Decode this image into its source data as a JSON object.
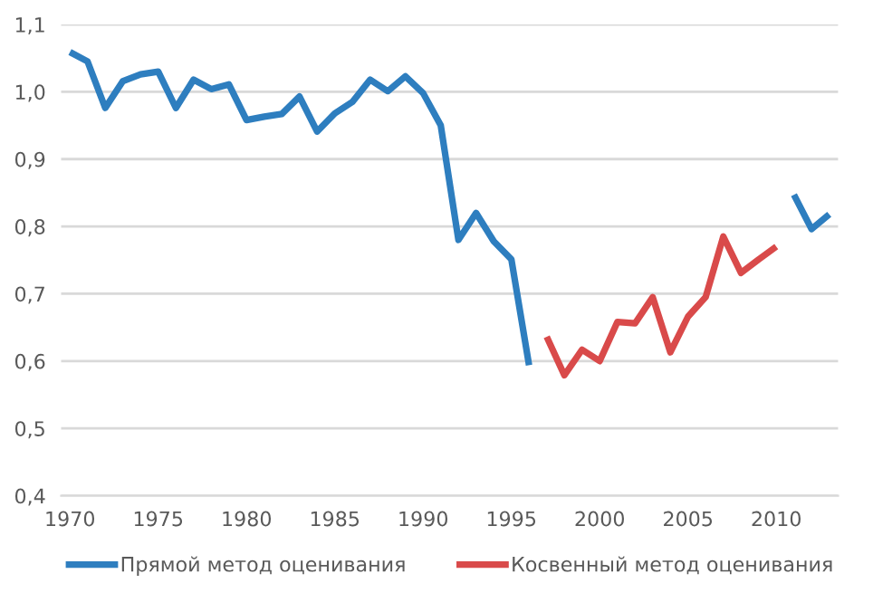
{
  "chart_data": {
    "type": "line",
    "x": [
      1970,
      1971,
      1972,
      1973,
      1974,
      1975,
      1976,
      1977,
      1978,
      1979,
      1980,
      1981,
      1982,
      1983,
      1984,
      1985,
      1986,
      1987,
      1988,
      1989,
      1990,
      1991,
      1992,
      1993,
      1994,
      1995,
      1996,
      1997,
      1998,
      1999,
      2000,
      2001,
      2002,
      2003,
      2004,
      2005,
      2006,
      2007,
      2008,
      2009,
      2010,
      2011,
      2012,
      2013
    ],
    "series": [
      {
        "name": "Прямой метод оценивания",
        "color": "#2e7ebf",
        "values": [
          1.059,
          1.045,
          0.976,
          1.016,
          1.026,
          1.03,
          0.976,
          1.018,
          1.004,
          1.011,
          0.958,
          0.963,
          0.967,
          0.993,
          0.941,
          0.968,
          0.985,
          1.018,
          1.001,
          1.023,
          0.998,
          0.95,
          0.78,
          0.82,
          0.778,
          0.751,
          0.594,
          null,
          null,
          null,
          null,
          null,
          null,
          null,
          null,
          null,
          null,
          null,
          null,
          null,
          null,
          0.847,
          0.796,
          0.818
        ]
      },
      {
        "name": "Косвенный метод оценивания",
        "color": "#d94a4a",
        "values": [
          null,
          null,
          null,
          null,
          null,
          null,
          null,
          null,
          null,
          null,
          null,
          null,
          null,
          null,
          null,
          null,
          null,
          null,
          null,
          null,
          null,
          null,
          null,
          null,
          null,
          null,
          null,
          0.636,
          0.579,
          0.617,
          0.6,
          0.658,
          0.656,
          0.695,
          0.613,
          0.666,
          0.695,
          0.785,
          0.731,
          0.751,
          0.77,
          null,
          null,
          null
        ]
      }
    ],
    "xlim": [
      1969.5,
      2013.5
    ],
    "xticks": [
      1970,
      1975,
      1980,
      1985,
      1990,
      1995,
      2000,
      2005,
      2010
    ],
    "ylim": [
      0.4,
      1.1
    ],
    "yticks": [
      {
        "value": 0.4,
        "label": "0,4"
      },
      {
        "value": 0.5,
        "label": "0,5"
      },
      {
        "value": 0.6,
        "label": "0,6"
      },
      {
        "value": 0.7,
        "label": "0,7"
      },
      {
        "value": 0.8,
        "label": "0,8"
      },
      {
        "value": 0.9,
        "label": "0,9"
      },
      {
        "value": 1.0,
        "label": "1,0"
      },
      {
        "value": 1.1,
        "label": "1,1"
      }
    ],
    "grid": "y",
    "legend": "bottom",
    "marker": "none",
    "line_style": "solid"
  }
}
